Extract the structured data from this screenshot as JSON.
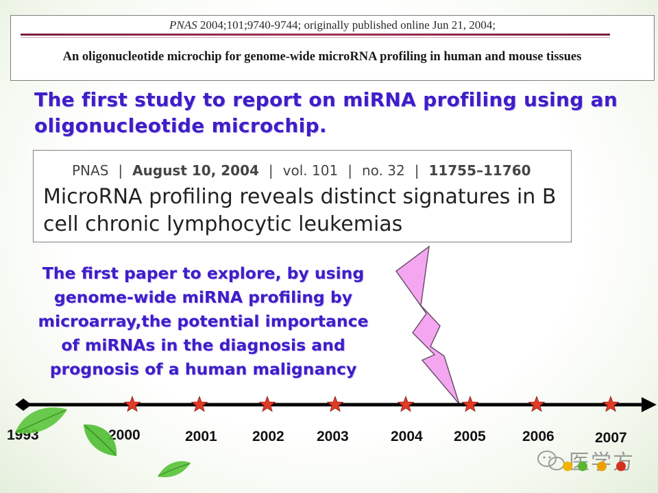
{
  "top_citation": {
    "journal": "PNAS",
    "rest": " 2004;101;9740-9744; originally published online Jun 21, 2004;",
    "title": "An oligonucleotide microchip for genome-wide microRNA profiling in human and mouse tissues"
  },
  "note_first_study": "The first study to report on miRNA profiling using an oligonucleotide microchip.",
  "second_citation": {
    "journal": "PNAS",
    "date": "August 10, 2004",
    "volume": "vol. 101",
    "number": "no. 32",
    "pages": "11755–11760",
    "separator": "|",
    "title": "MicroRNA profiling reveals distinct signatures in B cell chronic lymphocytic leukemias"
  },
  "note_first_paper": "The first paper to explore, by using genome-wide miRNA profiling by microarray,the potential importance of miRNAs in the diagnosis and prognosis of a human malignancy",
  "timeline": {
    "start_label": "1993",
    "years": [
      "2000",
      "2001",
      "2002",
      "2003",
      "2004",
      "2005",
      "2006",
      "2007"
    ],
    "highlighted_year": "2005",
    "colors": {
      "axis": "#000000",
      "star": "#e23a26",
      "bolt": "#f4a6f0",
      "note_text": "#3f1ec8"
    }
  },
  "watermark": {
    "text": "医学方",
    "icon": "wechat-logo-icon"
  }
}
